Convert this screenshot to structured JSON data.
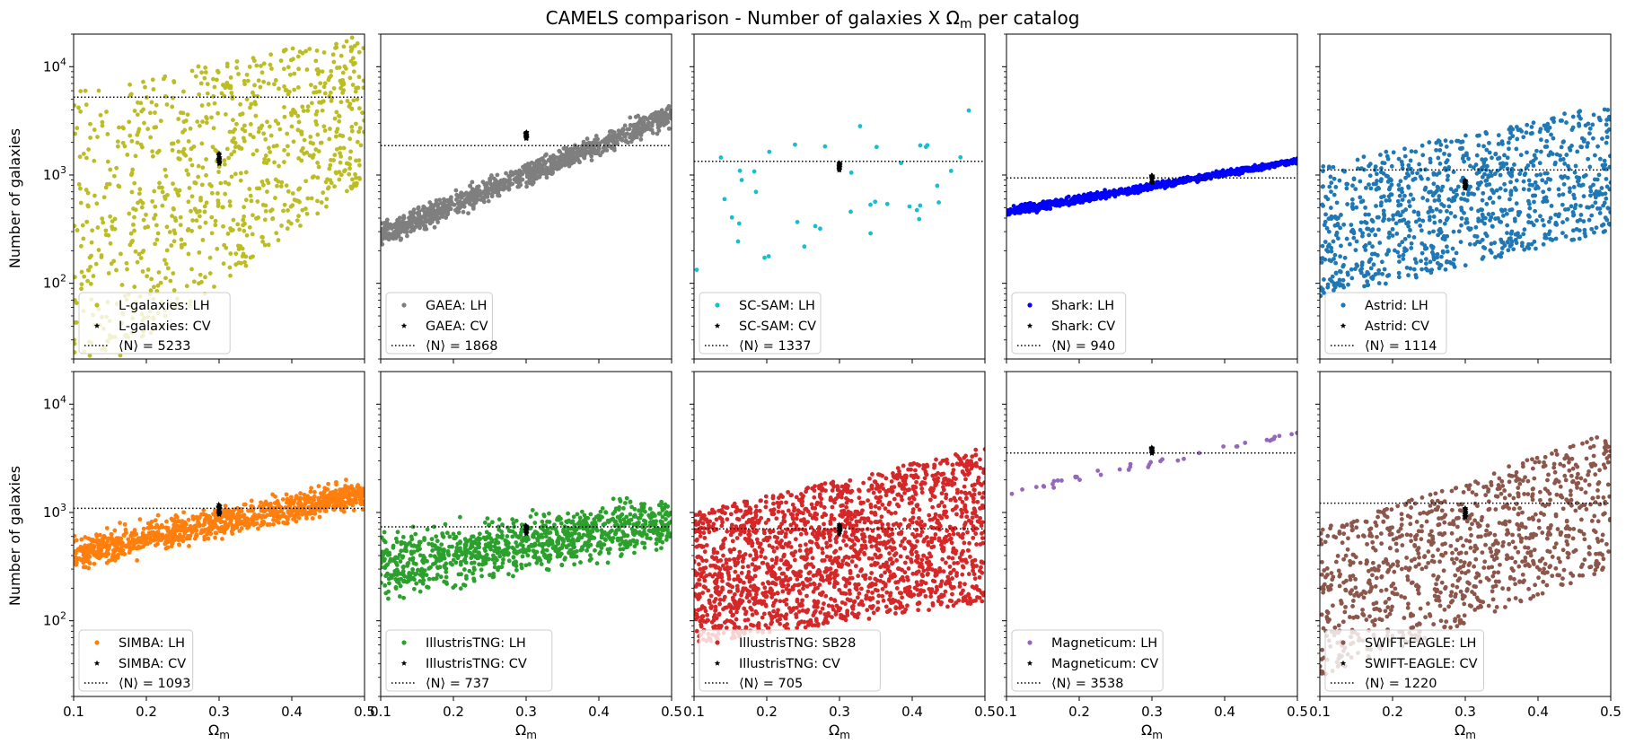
{
  "figure": {
    "title": "CAMELS comparison - Number of galaxies X Ωm per catalog",
    "title_main": "CAMELS comparison - Number of galaxies X Ω",
    "title_sub": "m",
    "title_tail": " per catalog",
    "xlabel_main": "Ω",
    "xlabel_sub": "m",
    "ylabel": "Number of galaxies"
  },
  "chart_data": [
    {
      "type": "scatter",
      "panel": "top-1",
      "lh_label": "L-galaxies: LH",
      "cv_label": "L-galaxies: CV",
      "mean_label": "⟨N⟩ = 5233",
      "mean": 5233,
      "color": "#bcbd22",
      "lh_n": 900,
      "lh_low": [
        10,
        900
      ],
      "lh_high": [
        6000,
        20000
      ],
      "lh_fill": "uniform",
      "cv_omega": 0.3,
      "cv_range": [
        1250,
        1600
      ],
      "xlim": [
        0.1,
        0.5
      ],
      "ylim": [
        20,
        20000
      ]
    },
    {
      "type": "scatter",
      "panel": "top-2",
      "lh_label": "GAEA: LH",
      "cv_label": "GAEA: CV",
      "mean_label": "⟨N⟩ = 1868",
      "mean": 1868,
      "color": "#7f7f7f",
      "lh_n": 1000,
      "lh_low": [
        200,
        2600
      ],
      "lh_high": [
        400,
        5000
      ],
      "lh_fill": "band",
      "cv_omega": 0.3,
      "cv_range": [
        2150,
        2500
      ],
      "xlim": [
        0.1,
        0.5
      ],
      "ylim": [
        20,
        20000
      ]
    },
    {
      "type": "scatter",
      "panel": "top-3",
      "lh_label": "SC-SAM: LH",
      "cv_label": "SC-SAM: CV",
      "mean_label": "⟨N⟩ = 1337",
      "mean": 1337,
      "color": "#17becf",
      "lh_n": 40,
      "lh_low": [
        120,
        500
      ],
      "lh_high": [
        1500,
        4800
      ],
      "lh_fill": "uniform",
      "cv_omega": 0.3,
      "cv_range": [
        1100,
        1300
      ],
      "xlim": [
        0.1,
        0.5
      ],
      "ylim": [
        20,
        20000
      ]
    },
    {
      "type": "scatter",
      "panel": "top-4",
      "lh_label": "Shark: LH",
      "cv_label": "Shark: CV",
      "mean_label": "⟨N⟩ = 940",
      "mean": 940,
      "color": "#0000ff",
      "lh_n": 1000,
      "lh_low": [
        400,
        1250
      ],
      "lh_high": [
        520,
        1450
      ],
      "lh_fill": "band",
      "cv_omega": 0.3,
      "cv_range": [
        850,
        1000
      ],
      "xlim": [
        0.1,
        0.5
      ],
      "ylim": [
        20,
        20000
      ]
    },
    {
      "type": "scatter",
      "panel": "top-5",
      "lh_label": "Astrid: LH",
      "cv_label": "Astrid: CV",
      "mean_label": "⟨N⟩ = 1114",
      "mean": 1114,
      "color": "#1f77b4",
      "lh_n": 1000,
      "lh_low": [
        70,
        300
      ],
      "lh_high": [
        1200,
        4800
      ],
      "lh_fill": "uniform",
      "cv_omega": 0.3,
      "cv_range": [
        750,
        900
      ],
      "xlim": [
        0.1,
        0.5
      ],
      "ylim": [
        20,
        20000
      ]
    },
    {
      "type": "scatter",
      "panel": "bottom-1",
      "lh_label": "SIMBA: LH",
      "cv_label": "SIMBA: CV",
      "mean_label": "⟨N⟩ = 1093",
      "mean": 1093,
      "color": "#ff7f0e",
      "lh_n": 1000,
      "lh_low": [
        250,
        1000
      ],
      "lh_high": [
        700,
        2300
      ],
      "lh_fill": "band",
      "cv_omega": 0.3,
      "cv_range": [
        950,
        1200
      ],
      "xlim": [
        0.1,
        0.5
      ],
      "ylim": [
        20,
        20000
      ]
    },
    {
      "type": "scatter",
      "panel": "bottom-2",
      "lh_label": "IllustrisTNG: LH",
      "cv_label": "IllustrisTNG: CV",
      "mean_label": "⟨N⟩ = 737",
      "mean": 737,
      "color": "#2ca02c",
      "lh_n": 1000,
      "lh_low": [
        120,
        400
      ],
      "lh_high": [
        800,
        1800
      ],
      "lh_fill": "band",
      "cv_omega": 0.3,
      "cv_range": [
        630,
        760
      ],
      "xlim": [
        0.1,
        0.5
      ],
      "ylim": [
        20,
        20000
      ]
    },
    {
      "type": "scatter",
      "panel": "bottom-3",
      "lh_label": "IllustrisTNG: SB28",
      "cv_label": "IllustrisTNG: CV",
      "mean_label": "⟨N⟩ = 705",
      "mean": 705,
      "color": "#d62728",
      "lh_n": 2000,
      "lh_low": [
        60,
        150
      ],
      "lh_high": [
        1000,
        4000
      ],
      "lh_fill": "uniform",
      "cv_omega": 0.3,
      "cv_range": [
        620,
        780
      ],
      "xlim": [
        0.1,
        0.5
      ],
      "ylim": [
        20,
        20000
      ]
    },
    {
      "type": "scatter",
      "panel": "bottom-4",
      "lh_label": "Magneticum: LH",
      "cv_label": "Magneticum: CV",
      "mean_label": "⟨N⟩ = 3538",
      "mean": 3538,
      "color": "#9467bd",
      "lh_n": 40,
      "lh_low": [
        1300,
        5000
      ],
      "lh_high": [
        1800,
        5700
      ],
      "lh_fill": "band",
      "cv_omega": 0.3,
      "cv_range": [
        3500,
        4000
      ],
      "xlim": [
        0.1,
        0.5
      ],
      "ylim": [
        20,
        20000
      ]
    },
    {
      "type": "scatter",
      "panel": "bottom-5",
      "lh_label": "SWIFT-EAGLE: LH",
      "cv_label": "SWIFT-EAGLE: CV",
      "mean_label": "⟨N⟩ = 1220",
      "mean": 1220,
      "color": "#8c564b",
      "lh_n": 1000,
      "lh_low": [
        30,
        300
      ],
      "lh_high": [
        700,
        5500
      ],
      "lh_fill": "uniform",
      "cv_omega": 0.3,
      "cv_range": [
        900,
        1100
      ],
      "xlim": [
        0.1,
        0.5
      ],
      "ylim": [
        20,
        20000
      ]
    }
  ],
  "axes": {
    "x_ticks": [
      0.1,
      0.2,
      0.3,
      0.4,
      0.5
    ],
    "x_tick_labels": [
      "0.1",
      "0.2",
      "0.3",
      "0.4",
      "0.5"
    ],
    "y_ticks": [
      100,
      1000,
      10000
    ],
    "y_tick_base": "10",
    "y_tick_exps": [
      "2",
      "3",
      "4"
    ],
    "xlim": [
      0.1,
      0.5
    ],
    "ylim": [
      20,
      20000
    ],
    "yscale": "log"
  }
}
